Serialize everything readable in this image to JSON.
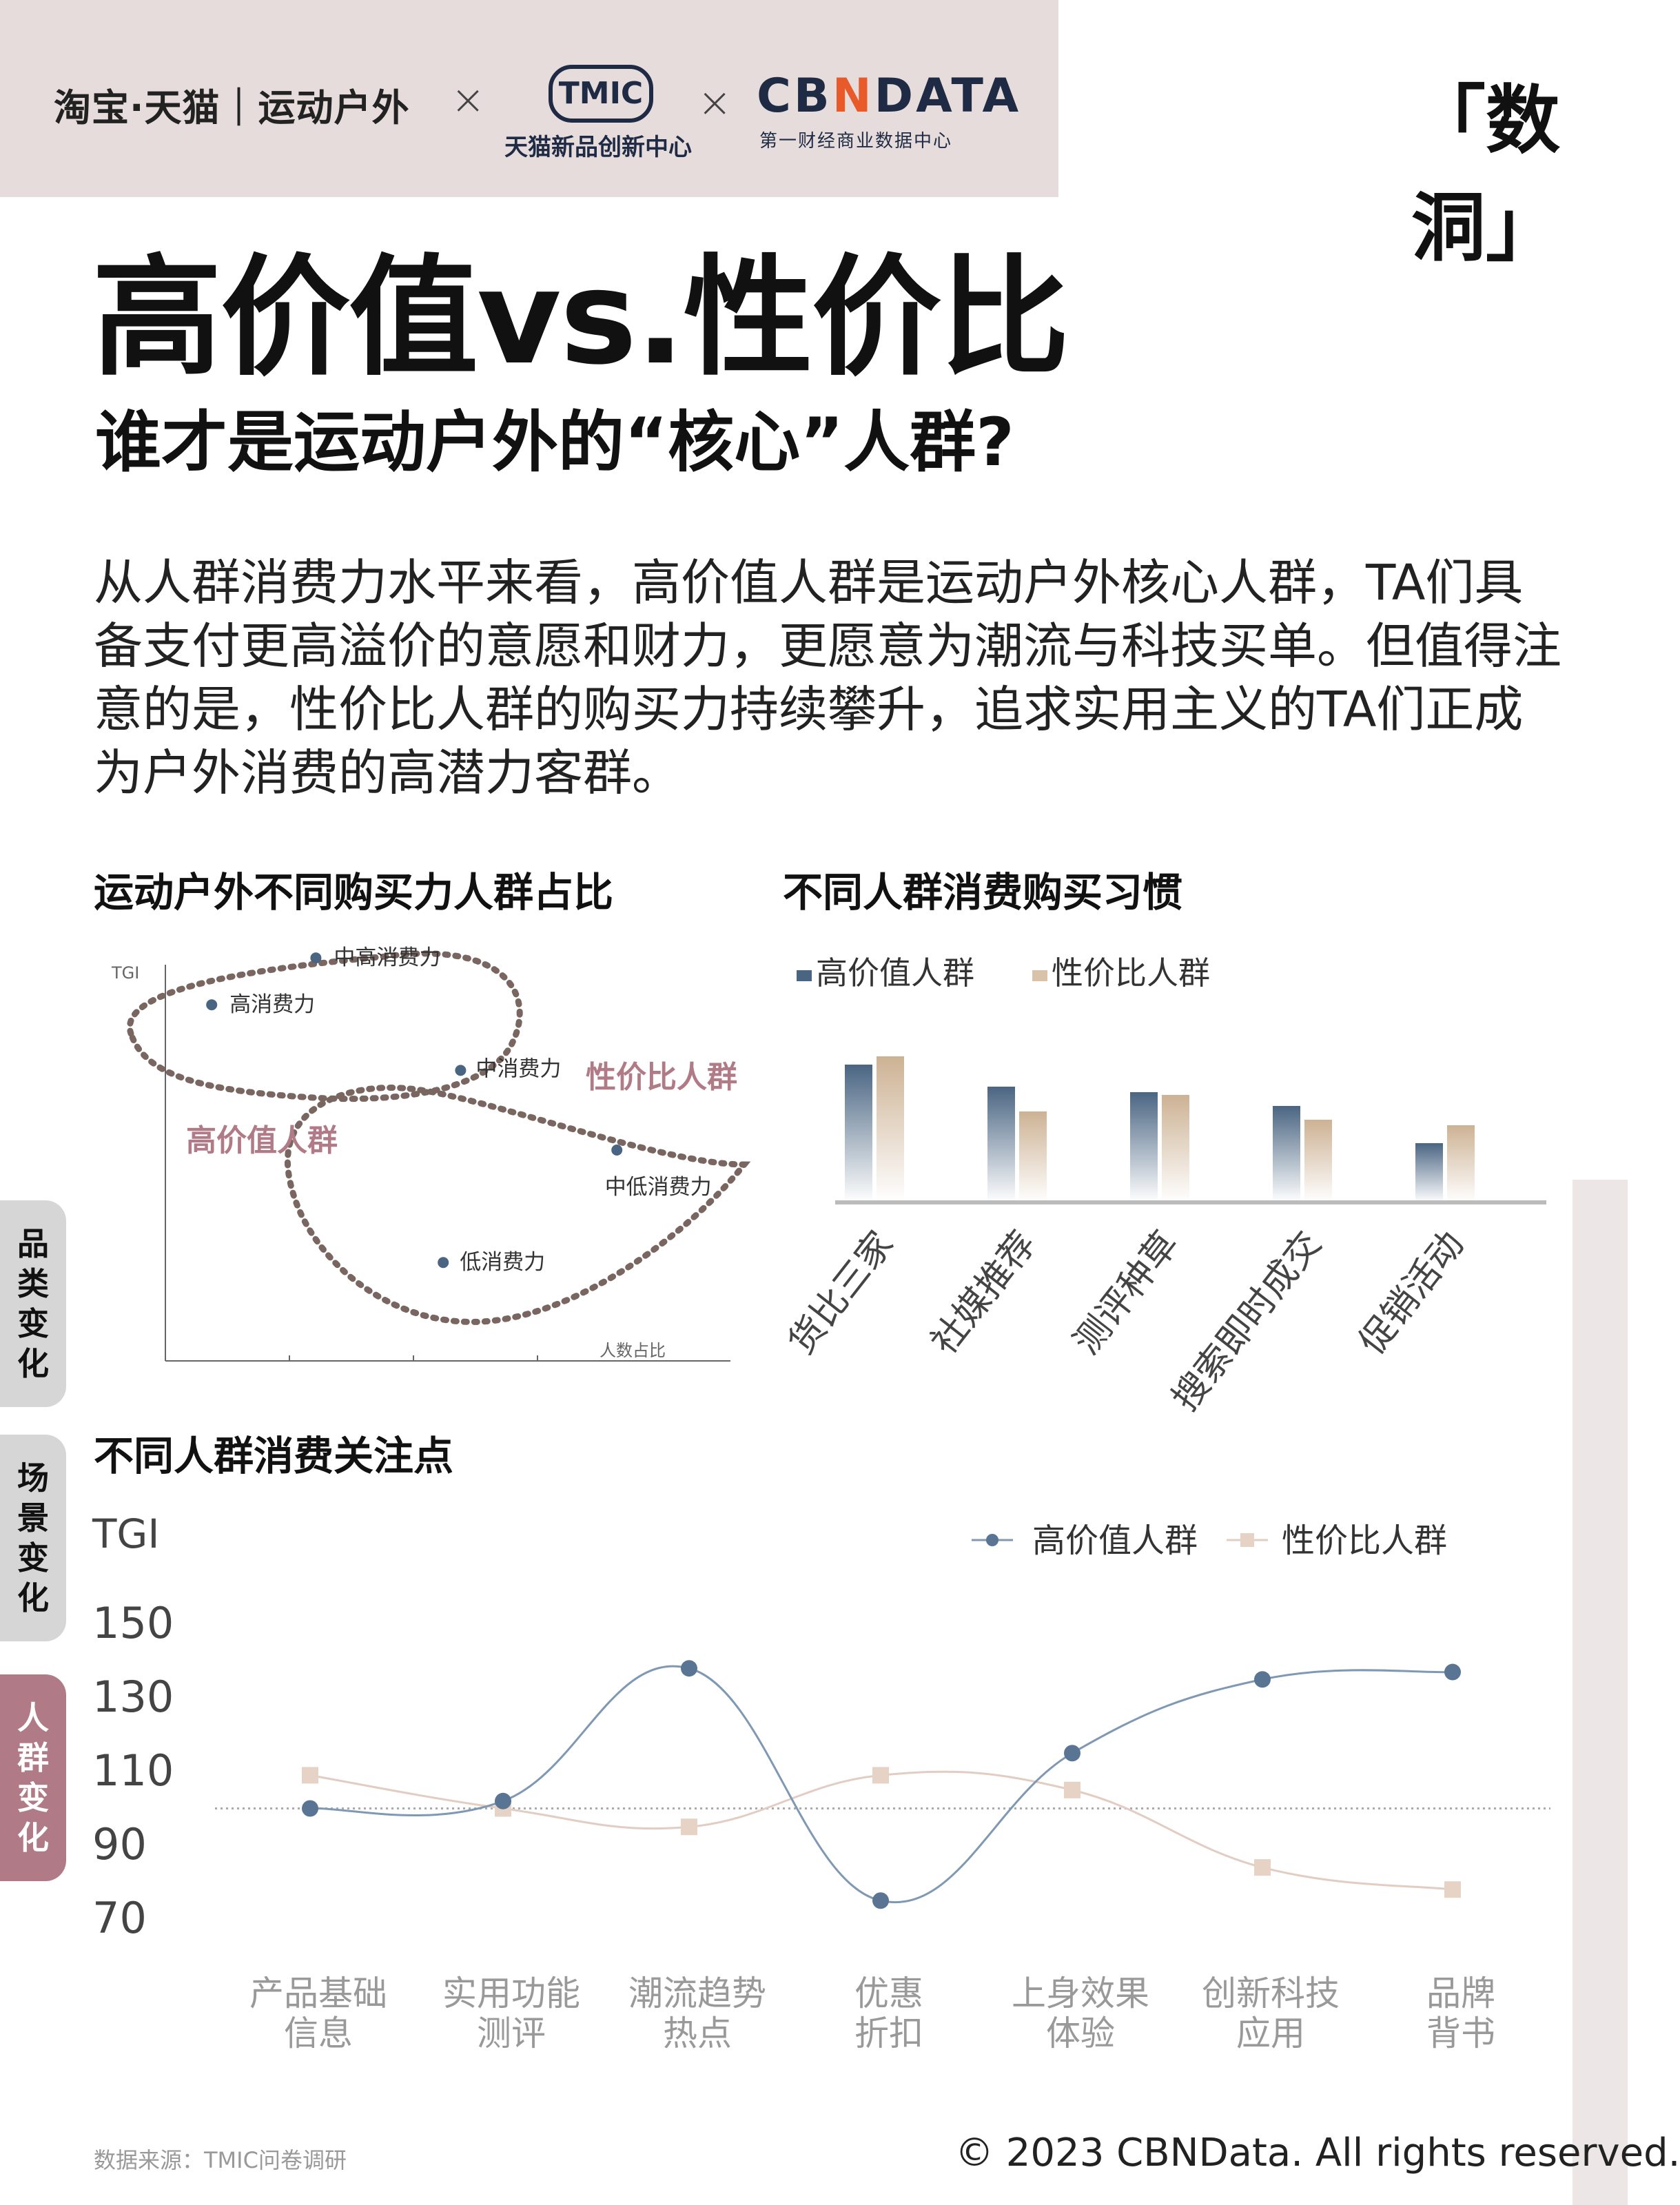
{
  "header": {
    "brand_left": "淘宝·天猫｜运动户外",
    "x_symbol": "×",
    "tmic_logo": "TMIC",
    "tmic_sub": "天猫新品创新中心",
    "cbn_logo_pre": "CB",
    "cbn_logo_n": "N",
    "cbn_logo_post": "DATA",
    "cbn_sub": "第一财经商业数据中心",
    "shudong": "「数洞」"
  },
  "title": "高价值vs.性价比",
  "subtitle": "谁才是运动户外的“核心”人群?",
  "body_text": "从人群消费力水平来看，高价值人群是运动户外核心人群，TA们具备支付更高溢价的意愿和财力，更愿意为潮流与科技买单。但值得注意的是，性价比人群的购买力持续攀升，追求实用主义的TA们正成为户外消费的高潜力客群。",
  "side_tabs": [
    "品类变化",
    "场景变化",
    "人群变化"
  ],
  "source": "数据来源：TMIC问卷调研",
  "copyright": "© 2023 CBNData. All rights reserved.",
  "colors": {
    "high_value": "#4a6582",
    "value_for_money": "#d8c2aa",
    "accent_pink": "#b07a86",
    "dotted_outline": "#7a6660"
  },
  "chart_data": [
    {
      "type": "scatter",
      "title": "运动户外不同购买力人群占比",
      "xlabel": "人数占比",
      "ylabel": "TGI",
      "grid": false,
      "points": [
        {
          "label": "中高消费力",
          "x": 2.6,
          "y": 8.6
        },
        {
          "label": "高消费力",
          "x": 0.8,
          "y": 7.6
        },
        {
          "label": "中消费力",
          "x": 5.1,
          "y": 6.2
        },
        {
          "label": "中低消费力",
          "x": 7.8,
          "y": 4.5
        },
        {
          "label": "低消费力",
          "x": 4.8,
          "y": 2.1
        }
      ],
      "groups": [
        {
          "name": "高价值人群",
          "members": [
            "中高消费力",
            "高消费力"
          ]
        },
        {
          "name": "性价比人群",
          "members": [
            "中消费力",
            "中低消费力",
            "低消费力"
          ]
        }
      ]
    },
    {
      "type": "bar",
      "title": "不同人群消费购买习惯",
      "categories": [
        "货比三家",
        "社媒推荐",
        "测评种草",
        "搜索即时成交",
        "促销活动"
      ],
      "series": [
        {
          "name": "高价值人群",
          "values": [
            100,
            84,
            80,
            70,
            43
          ]
        },
        {
          "name": "性价比人群",
          "values": [
            106,
            66,
            78,
            60,
            56
          ]
        }
      ],
      "legend": "top-left"
    },
    {
      "type": "line",
      "title": "不同人群消费关注点",
      "ylabel": "TGI",
      "yticks": [
        "150",
        "130",
        "110",
        "90",
        "70"
      ],
      "ylim": [
        70,
        150
      ],
      "reference_line": 100,
      "categories": [
        "产品基础\n信息",
        "实用功能\n测评",
        "潮流趋势\n热点",
        "优惠\n折扣",
        "上身效果\n体验",
        "创新科技\n应用",
        "品牌\n背书"
      ],
      "series": [
        {
          "name": "高价值人群",
          "values": [
            100,
            102,
            138,
            75,
            115,
            135,
            137
          ]
        },
        {
          "name": "性价比人群",
          "values": [
            109,
            100,
            95,
            109,
            105,
            84,
            78
          ]
        }
      ],
      "legend": "top-right"
    }
  ]
}
